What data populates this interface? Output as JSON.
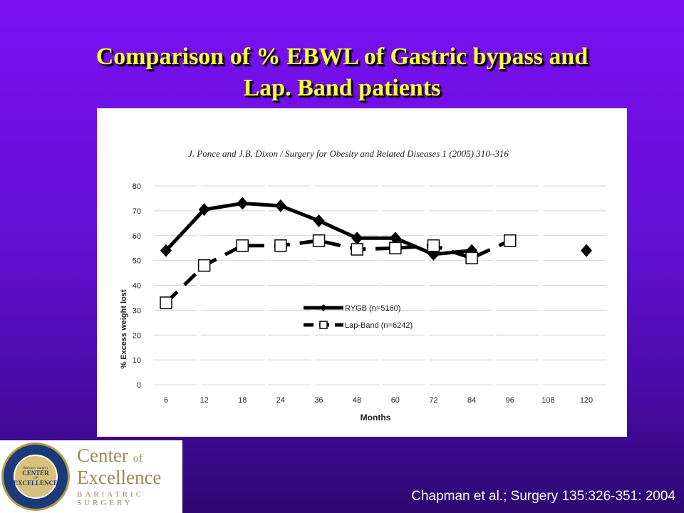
{
  "slide": {
    "title_line1": "Comparison of % EBWL of Gastric bypass and",
    "title_line2": "Lap. Band patients",
    "citation": "Chapman et al.; Surgery 135:326-351: 2004",
    "logo": {
      "seal_top": "AMERICAN SOCIETY FOR BARIATRIC SURGERY",
      "seal_bottom": "SURGICAL REVIEW CORPORATION",
      "seal_line1": "Bariatric Surgery",
      "seal_line2": "CENTER",
      "seal_line3": "OF",
      "seal_line4": "EXCELLENCE",
      "text_center": "Center",
      "text_of": "of",
      "text_excellence": "Excellence",
      "text_sub": "BARIATRIC SURGERY"
    },
    "colors": {
      "background": "#6a10e0",
      "title": "#ffff33",
      "citation": "#ffffff"
    }
  },
  "chart_data": {
    "type": "line",
    "source_note": "J. Ponce and J.B. Dixon / Surgery for Obesity and Related Diseases 1 (2005) 310–316",
    "categories": [
      "6",
      "12",
      "18",
      "24",
      "36",
      "48",
      "60",
      "72",
      "84",
      "96",
      "108",
      "120"
    ],
    "xlabel": "Months",
    "ylabel": "% Excess weight lost",
    "ylim": [
      0,
      80
    ],
    "yticks": [
      "0",
      "10",
      "20",
      "30",
      "40",
      "50",
      "60",
      "70",
      "80"
    ],
    "grid": true,
    "legend_position": "center",
    "series": [
      {
        "name": "RYGB (n=5160)",
        "line": "solid",
        "marker": "diamond",
        "values": [
          54,
          70.5,
          73,
          72,
          66,
          59,
          59,
          52.5,
          54,
          null,
          null,
          54
        ]
      },
      {
        "name": "Lap-Band (n=6242)",
        "line": "dashed",
        "marker": "square",
        "values": [
          33,
          48,
          56,
          56,
          58,
          54.5,
          55,
          56,
          51,
          58,
          null,
          null
        ]
      }
    ]
  }
}
